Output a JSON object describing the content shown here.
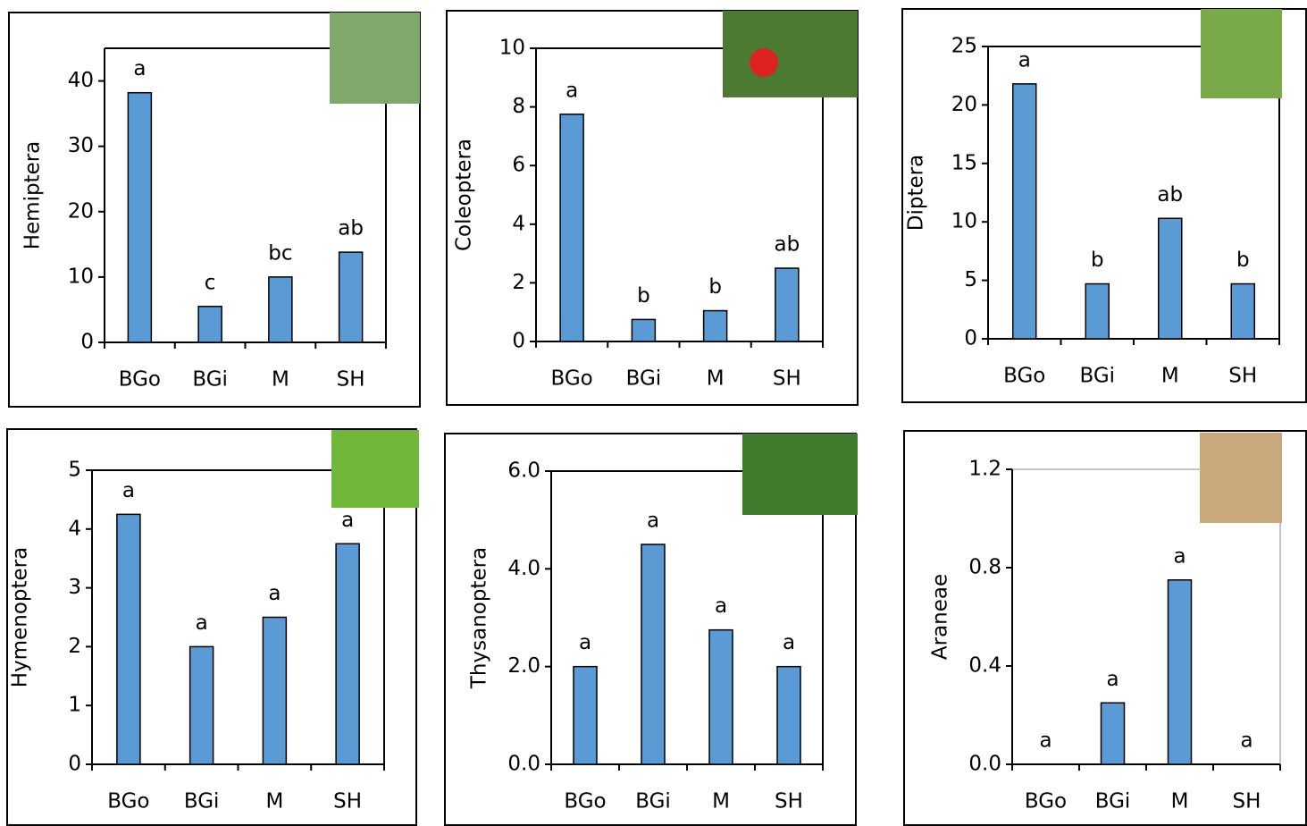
{
  "chart_data": [
    {
      "type": "bar",
      "ylabel": "Hemiptera",
      "categories": [
        "BGo",
        "BGi",
        "M",
        "SH"
      ],
      "values": [
        38.2,
        5.5,
        10,
        13.8
      ],
      "annotations": [
        "a",
        "c",
        "bc",
        "ab"
      ],
      "color": "#5b9bd5",
      "ylim": [
        0,
        45
      ],
      "yticks": [
        0,
        10,
        20,
        30,
        40
      ]
    },
    {
      "type": "bar",
      "ylabel": "Coleoptera",
      "categories": [
        "BGo",
        "BGi",
        "M",
        "SH"
      ],
      "values": [
        7.75,
        0.75,
        1.05,
        2.5
      ],
      "annotations": [
        "a",
        "b",
        "b",
        "ab"
      ],
      "color": "#5b9bd5",
      "ylim": [
        0,
        10
      ],
      "yticks": [
        0,
        2,
        4,
        6,
        8,
        10
      ]
    },
    {
      "type": "bar",
      "ylabel": "Diptera",
      "categories": [
        "BGo",
        "BGi",
        "M",
        "SH"
      ],
      "values": [
        21.8,
        4.7,
        10.3,
        4.7
      ],
      "annotations": [
        "a",
        "b",
        "ab",
        "b"
      ],
      "color": "#5b9bd5",
      "ylim": [
        0,
        25
      ],
      "yticks": [
        0,
        5,
        10,
        15,
        20,
        25
      ]
    },
    {
      "type": "bar",
      "ylabel": "Hymenoptera",
      "categories": [
        "BGo",
        "BGi",
        "M",
        "SH"
      ],
      "values": [
        4.25,
        2.0,
        2.5,
        3.75
      ],
      "annotations": [
        "a",
        "a",
        "a",
        "a"
      ],
      "color": "#5b9bd5",
      "ylim": [
        0,
        5
      ],
      "yticks": [
        0,
        1,
        2,
        3,
        4,
        5
      ]
    },
    {
      "type": "bar",
      "ylabel": "Thysanoptera",
      "categories": [
        "BGo",
        "BGi",
        "M",
        "SH"
      ],
      "values": [
        2.0,
        4.5,
        2.75,
        2.0
      ],
      "annotations": [
        "a",
        "a",
        "a",
        "a"
      ],
      "color": "#5b9bd5",
      "ylim": [
        0,
        6
      ],
      "yticks": [
        {
          "value": 0,
          "label": "0.0"
        },
        {
          "value": 2,
          "label": "2.0"
        },
        {
          "value": 4,
          "label": "4.0"
        },
        {
          "value": 6,
          "label": "6.0"
        }
      ]
    },
    {
      "type": "bar",
      "ylabel": "Araneae",
      "categories": [
        "BGo",
        "BGi",
        "M",
        "SH"
      ],
      "values": [
        0,
        0.25,
        0.75,
        0
      ],
      "annotations": [
        "a",
        "a",
        "a",
        "a"
      ],
      "color": "#5b9bd5",
      "ylim": [
        0,
        1.2
      ],
      "yticks": [
        {
          "value": 0,
          "label": "0.0"
        },
        0.4,
        0.8,
        1.2
      ]
    }
  ]
}
